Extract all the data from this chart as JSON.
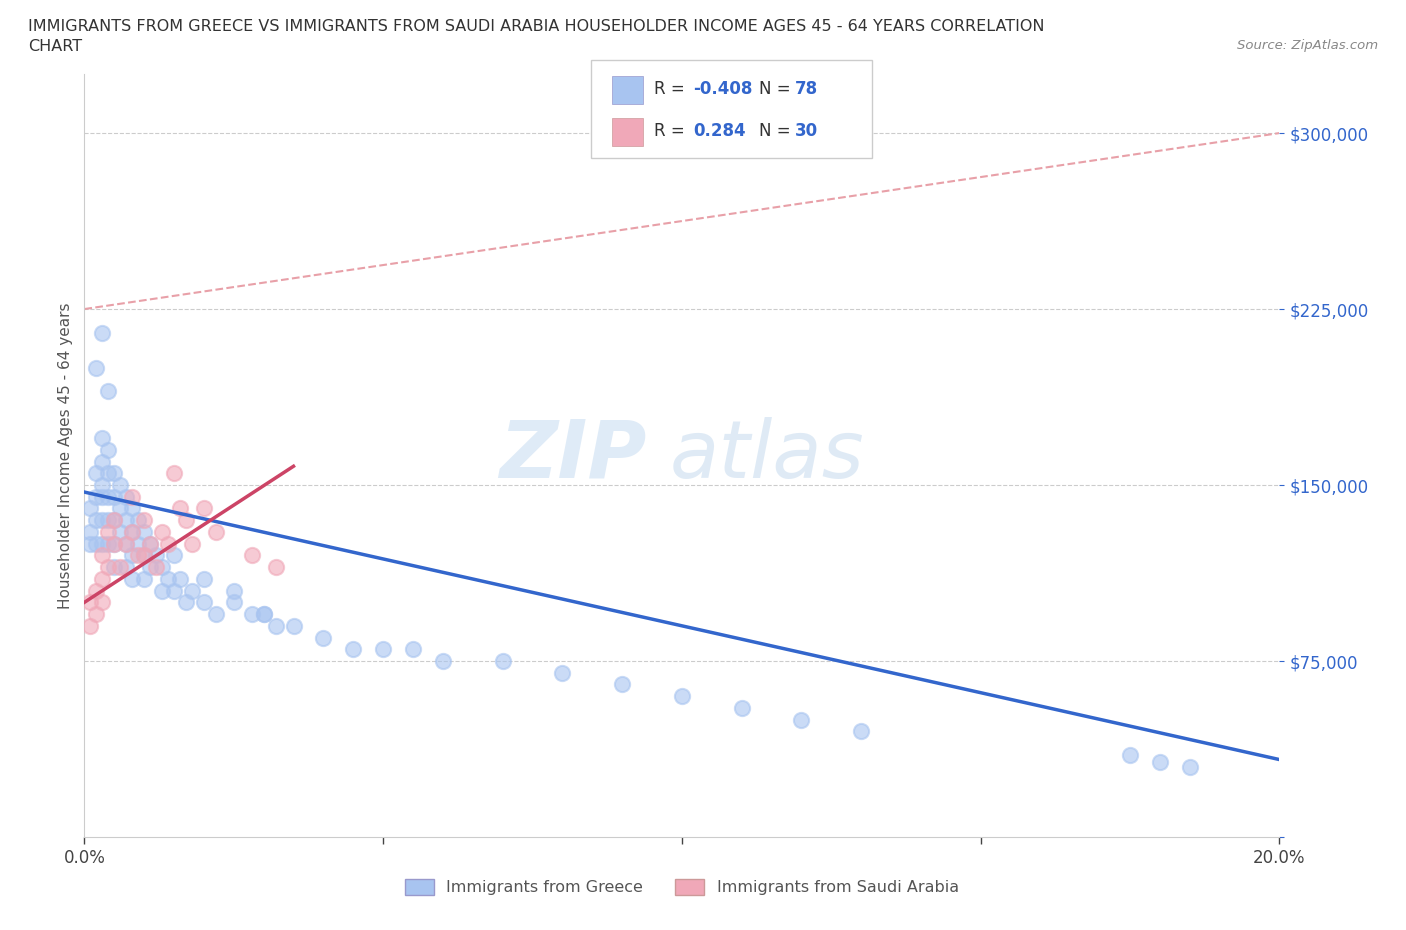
{
  "title_line1": "IMMIGRANTS FROM GREECE VS IMMIGRANTS FROM SAUDI ARABIA HOUSEHOLDER INCOME AGES 45 - 64 YEARS CORRELATION",
  "title_line2": "CHART",
  "source_text": "Source: ZipAtlas.com",
  "ylabel": "Householder Income Ages 45 - 64 years",
  "watermark_zip": "ZIP",
  "watermark_atlas": "atlas",
  "legend_r1_label": "R = ",
  "legend_r1_val": "-0.408",
  "legend_n1_label": "N = ",
  "legend_n1_val": "78",
  "legend_r2_label": "R =  ",
  "legend_r2_val": "0.284",
  "legend_n2_label": "N = ",
  "legend_n2_val": "30",
  "greece_color": "#a8c4f0",
  "saudi_color": "#f0a8b8",
  "greece_line_color": "#3366cc",
  "saudi_line_color": "#cc4466",
  "ref_line_color": "#e8a0a8",
  "xlim": [
    0.0,
    0.2
  ],
  "ylim": [
    0,
    325000
  ],
  "ytick_values": [
    0,
    75000,
    150000,
    225000,
    300000
  ],
  "ytick_labels": [
    "",
    "$75,000",
    "$150,000",
    "$225,000",
    "$300,000"
  ],
  "xtick_values": [
    0.0,
    0.05,
    0.1,
    0.15,
    0.2
  ],
  "xtick_labels": [
    "0.0%",
    "",
    "",
    "",
    "20.0%"
  ],
  "greece_x": [
    0.001,
    0.001,
    0.001,
    0.002,
    0.002,
    0.002,
    0.002,
    0.003,
    0.003,
    0.003,
    0.003,
    0.003,
    0.003,
    0.004,
    0.004,
    0.004,
    0.004,
    0.004,
    0.005,
    0.005,
    0.005,
    0.005,
    0.005,
    0.006,
    0.006,
    0.006,
    0.007,
    0.007,
    0.007,
    0.007,
    0.008,
    0.008,
    0.008,
    0.008,
    0.009,
    0.009,
    0.01,
    0.01,
    0.01,
    0.011,
    0.011,
    0.012,
    0.013,
    0.013,
    0.014,
    0.015,
    0.016,
    0.017,
    0.018,
    0.02,
    0.022,
    0.025,
    0.028,
    0.03,
    0.032,
    0.035,
    0.04,
    0.045,
    0.05,
    0.055,
    0.06,
    0.07,
    0.08,
    0.09,
    0.1,
    0.11,
    0.12,
    0.13,
    0.015,
    0.02,
    0.025,
    0.03,
    0.002,
    0.003,
    0.004,
    0.175,
    0.18,
    0.185
  ],
  "greece_y": [
    130000,
    140000,
    125000,
    145000,
    155000,
    135000,
    125000,
    150000,
    160000,
    170000,
    145000,
    135000,
    125000,
    165000,
    155000,
    145000,
    135000,
    125000,
    155000,
    145000,
    135000,
    125000,
    115000,
    150000,
    140000,
    130000,
    145000,
    135000,
    125000,
    115000,
    140000,
    130000,
    120000,
    110000,
    135000,
    125000,
    130000,
    120000,
    110000,
    125000,
    115000,
    120000,
    115000,
    105000,
    110000,
    105000,
    110000,
    100000,
    105000,
    100000,
    95000,
    100000,
    95000,
    95000,
    90000,
    90000,
    85000,
    80000,
    80000,
    80000,
    75000,
    75000,
    70000,
    65000,
    60000,
    55000,
    50000,
    45000,
    120000,
    110000,
    105000,
    95000,
    200000,
    215000,
    190000,
    35000,
    32000,
    30000
  ],
  "saudi_x": [
    0.001,
    0.001,
    0.002,
    0.002,
    0.003,
    0.003,
    0.003,
    0.004,
    0.004,
    0.005,
    0.005,
    0.006,
    0.007,
    0.008,
    0.008,
    0.009,
    0.01,
    0.01,
    0.011,
    0.012,
    0.013,
    0.014,
    0.015,
    0.016,
    0.017,
    0.018,
    0.02,
    0.022,
    0.028,
    0.032
  ],
  "saudi_y": [
    100000,
    90000,
    105000,
    95000,
    120000,
    110000,
    100000,
    130000,
    115000,
    135000,
    125000,
    115000,
    125000,
    145000,
    130000,
    120000,
    135000,
    120000,
    125000,
    115000,
    130000,
    125000,
    155000,
    140000,
    135000,
    125000,
    140000,
    130000,
    120000,
    115000
  ],
  "greece_trendline_x0": 0.0,
  "greece_trendline_x1": 0.2,
  "greece_trendline_y0": 147000,
  "greece_trendline_y1": 33000,
  "saudi_trendline_x0": 0.0,
  "saudi_trendline_x1": 0.035,
  "saudi_trendline_y0": 100000,
  "saudi_trendline_y1": 158000,
  "ref_line_x0": 0.0,
  "ref_line_x1": 0.2,
  "ref_line_y0": 225000,
  "ref_line_y1": 300000
}
